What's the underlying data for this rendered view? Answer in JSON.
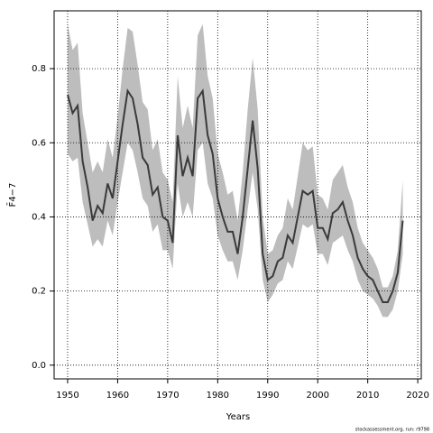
{
  "chart_data": {
    "type": "line",
    "xlabel": "Years",
    "ylabel": "F̄4−7",
    "note": "stockassessment.org, run: r9798",
    "x": [
      1950,
      1951,
      1952,
      1953,
      1954,
      1955,
      1956,
      1957,
      1958,
      1959,
      1960,
      1961,
      1962,
      1963,
      1964,
      1965,
      1966,
      1967,
      1968,
      1969,
      1970,
      1971,
      1972,
      1973,
      1974,
      1975,
      1976,
      1977,
      1978,
      1979,
      1980,
      1981,
      1982,
      1983,
      1984,
      1985,
      1986,
      1987,
      1988,
      1989,
      1990,
      1991,
      1992,
      1993,
      1994,
      1995,
      1996,
      1997,
      1998,
      1999,
      2000,
      2001,
      2002,
      2003,
      2004,
      2005,
      2006,
      2007,
      2008,
      2009,
      2010,
      2011,
      2012,
      2013,
      2014,
      2015,
      2016,
      2017
    ],
    "values": [
      0.73,
      0.68,
      0.7,
      0.55,
      0.48,
      0.39,
      0.43,
      0.41,
      0.49,
      0.45,
      0.55,
      0.65,
      0.74,
      0.72,
      0.65,
      0.56,
      0.54,
      0.46,
      0.48,
      0.4,
      0.39,
      0.33,
      0.62,
      0.51,
      0.56,
      0.51,
      0.72,
      0.74,
      0.62,
      0.57,
      0.45,
      0.4,
      0.36,
      0.36,
      0.3,
      0.4,
      0.53,
      0.66,
      0.53,
      0.3,
      0.23,
      0.24,
      0.28,
      0.29,
      0.35,
      0.33,
      0.4,
      0.47,
      0.46,
      0.47,
      0.37,
      0.37,
      0.34,
      0.41,
      0.42,
      0.44,
      0.39,
      0.35,
      0.29,
      0.26,
      0.24,
      0.23,
      0.2,
      0.17,
      0.17,
      0.2,
      0.25,
      0.39
    ],
    "upper": [
      0.92,
      0.85,
      0.87,
      0.68,
      0.6,
      0.52,
      0.55,
      0.52,
      0.61,
      0.56,
      0.67,
      0.8,
      0.91,
      0.9,
      0.81,
      0.71,
      0.69,
      0.58,
      0.61,
      0.52,
      0.5,
      0.44,
      0.78,
      0.64,
      0.7,
      0.64,
      0.89,
      0.92,
      0.78,
      0.72,
      0.57,
      0.52,
      0.46,
      0.47,
      0.39,
      0.52,
      0.69,
      0.83,
      0.69,
      0.4,
      0.3,
      0.31,
      0.35,
      0.37,
      0.45,
      0.42,
      0.51,
      0.6,
      0.58,
      0.59,
      0.46,
      0.45,
      0.42,
      0.5,
      0.52,
      0.54,
      0.48,
      0.44,
      0.37,
      0.33,
      0.31,
      0.29,
      0.26,
      0.21,
      0.21,
      0.24,
      0.31,
      0.5
    ],
    "lower": [
      0.57,
      0.55,
      0.56,
      0.44,
      0.38,
      0.32,
      0.34,
      0.32,
      0.39,
      0.35,
      0.44,
      0.52,
      0.6,
      0.58,
      0.52,
      0.45,
      0.43,
      0.36,
      0.38,
      0.31,
      0.31,
      0.26,
      0.49,
      0.4,
      0.44,
      0.4,
      0.58,
      0.6,
      0.49,
      0.45,
      0.35,
      0.31,
      0.28,
      0.28,
      0.23,
      0.31,
      0.42,
      0.52,
      0.42,
      0.23,
      0.17,
      0.19,
      0.22,
      0.23,
      0.28,
      0.26,
      0.32,
      0.38,
      0.37,
      0.38,
      0.3,
      0.3,
      0.27,
      0.33,
      0.34,
      0.35,
      0.31,
      0.28,
      0.23,
      0.2,
      0.19,
      0.18,
      0.16,
      0.13,
      0.13,
      0.15,
      0.2,
      0.3
    ],
    "color": "#3a3a3a",
    "band_color": "#bdbdbd",
    "xlim": [
      1947.3,
      2020.7
    ],
    "ylim": [
      -0.037,
      0.956
    ],
    "xticks": [
      1950,
      1960,
      1970,
      1980,
      1990,
      2000,
      2010,
      2020
    ],
    "yticks": [
      {
        "value": 0,
        "label": "0.0"
      },
      0.2,
      0.4,
      0.6,
      0.8
    ],
    "grid": true
  }
}
